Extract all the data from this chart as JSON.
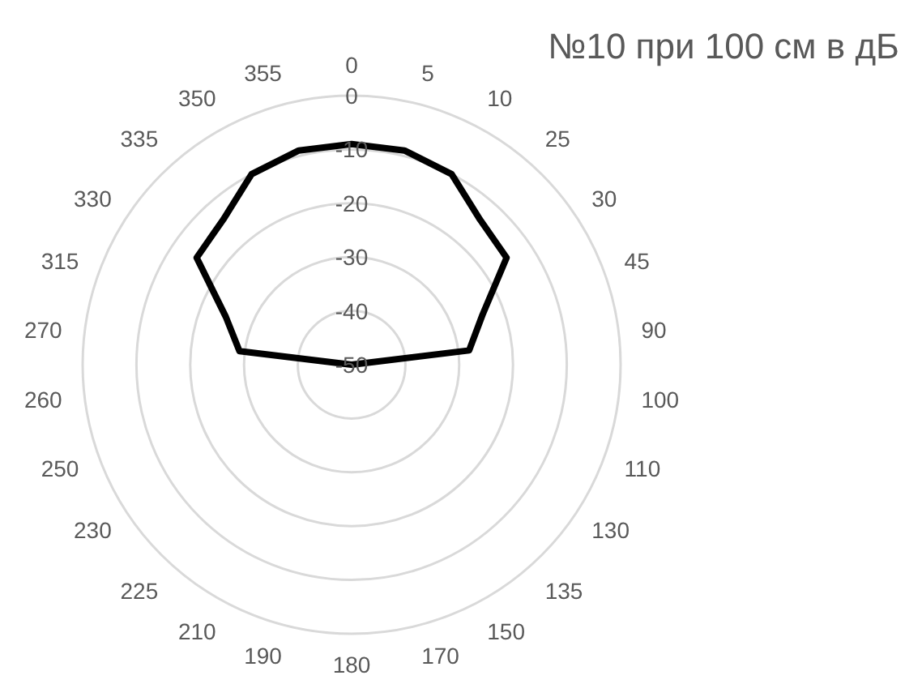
{
  "chart_data": {
    "type": "radar",
    "title": "№10 при 100 см в дБ",
    "categories": [
      "0",
      "5",
      "10",
      "25",
      "30",
      "45",
      "90",
      "100",
      "110",
      "130",
      "135",
      "150",
      "170",
      "180",
      "190",
      "210",
      "225",
      "230",
      "250",
      "260",
      "270",
      "315",
      "330",
      "335",
      "350",
      "355"
    ],
    "series": [
      {
        "color": "#000000",
        "values": [
          -9,
          -9,
          -10,
          -14,
          -15,
          -24,
          -28,
          -50,
          -50,
          -50,
          -50,
          -50,
          -50,
          -50,
          -50,
          -50,
          -50,
          -50,
          -50,
          -50,
          -29,
          -25,
          -15,
          -14,
          -10,
          -9
        ]
      }
    ],
    "ylim": [
      -50,
      0
    ],
    "yticks": [
      -50,
      -40,
      -30,
      -20,
      -10,
      0
    ],
    "grid": true
  }
}
